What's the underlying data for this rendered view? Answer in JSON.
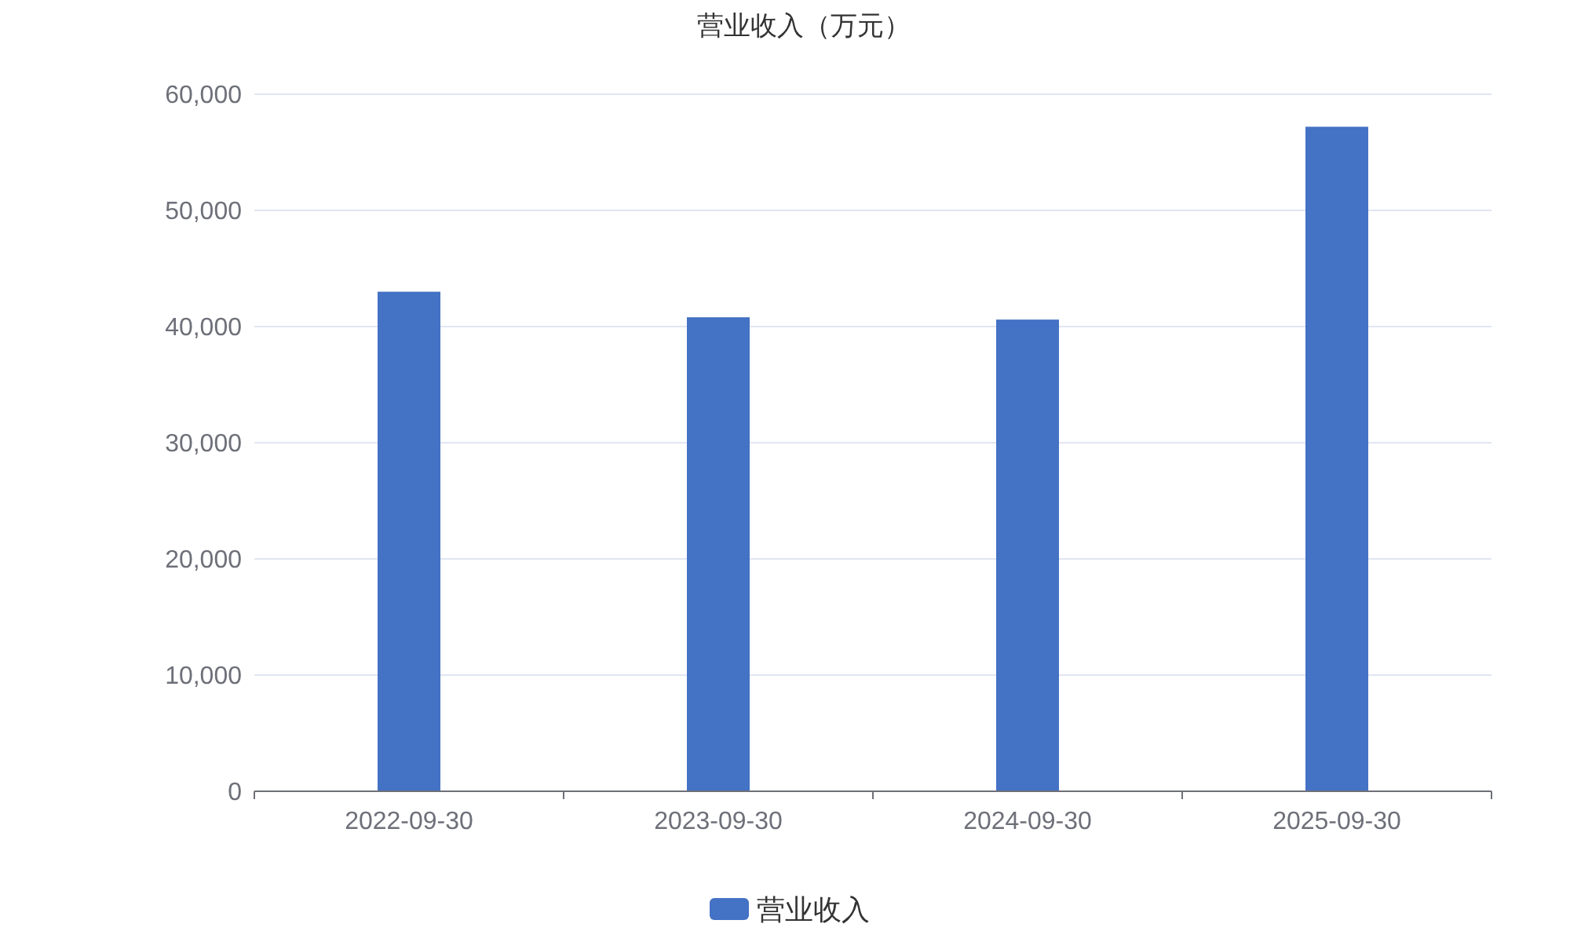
{
  "chart_data": {
    "type": "bar",
    "title": "营业收入（万元）",
    "categories": [
      "2022-09-30",
      "2023-09-30",
      "2024-09-30",
      "2025-09-30"
    ],
    "series": [
      {
        "name": "营业收入",
        "color": "#4472c4",
        "values": [
          43000,
          40800,
          40600,
          57200
        ]
      }
    ],
    "ylim": [
      0,
      60000
    ],
    "yticks": [
      {
        "value": 0,
        "label": "0"
      },
      {
        "value": 10000,
        "label": "10,000"
      },
      {
        "value": 20000,
        "label": "20,000"
      },
      {
        "value": 30000,
        "label": "30,000"
      },
      {
        "value": 40000,
        "label": "40,000"
      },
      {
        "value": 50000,
        "label": "50,000"
      },
      {
        "value": 60000,
        "label": "60,000"
      }
    ],
    "grid": "y",
    "legend": "bottom"
  }
}
